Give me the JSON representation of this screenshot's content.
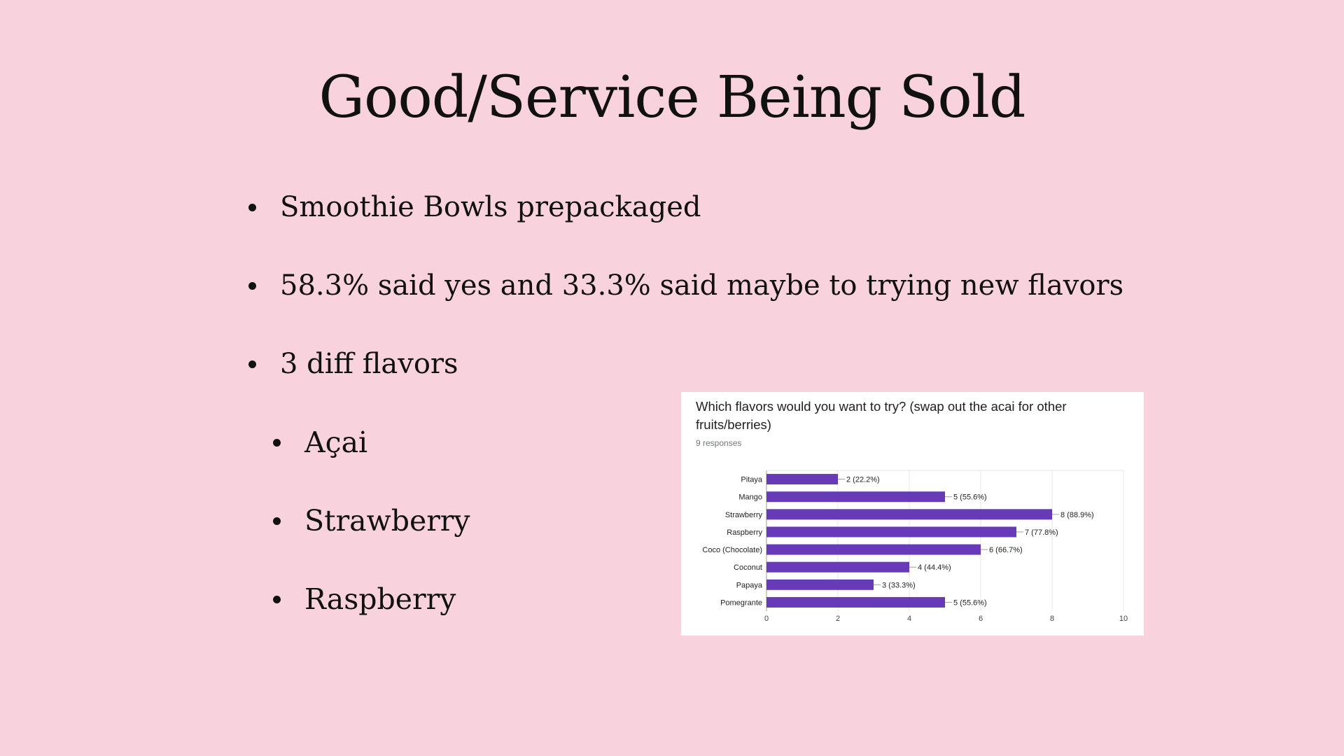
{
  "slide": {
    "title": "Good/Service Being Sold",
    "bullets": [
      {
        "text": "Smoothie Bowls prepackaged",
        "level": 1
      },
      {
        "text": "58.3% said yes and 33.3% said maybe to trying new flavors",
        "level": 1
      },
      {
        "text": "3 diff flavors",
        "level": 1
      },
      {
        "text": "Açai",
        "level": 2
      },
      {
        "text": "Strawberry",
        "level": 2
      },
      {
        "text": "Raspberry",
        "level": 2
      }
    ],
    "background_color": "#f8d3de"
  },
  "chart_data": {
    "type": "bar",
    "orientation": "horizontal",
    "title": "Which flavors would you want to try? (swap out the acai for other fruits/berries)",
    "subtitle": "9 responses",
    "categories": [
      "Pitaya",
      "Mango",
      "Strawberry",
      "Raspberry",
      "Coco (Chocolate)",
      "Coconut",
      "Papaya",
      "Pomegrante"
    ],
    "values": [
      2,
      5,
      8,
      7,
      6,
      4,
      3,
      5
    ],
    "data_labels": [
      "2 (22.2%)",
      "5 (55.6%)",
      "8 (88.9%)",
      "7 (77.8%)",
      "6 (66.7%)",
      "4 (44.4%)",
      "3 (33.3%)",
      "5 (55.6%)"
    ],
    "xlim": [
      0,
      10
    ],
    "xticks": [
      0,
      2,
      4,
      6,
      8,
      10
    ],
    "grid": true,
    "bar_color": "#673ab7"
  }
}
